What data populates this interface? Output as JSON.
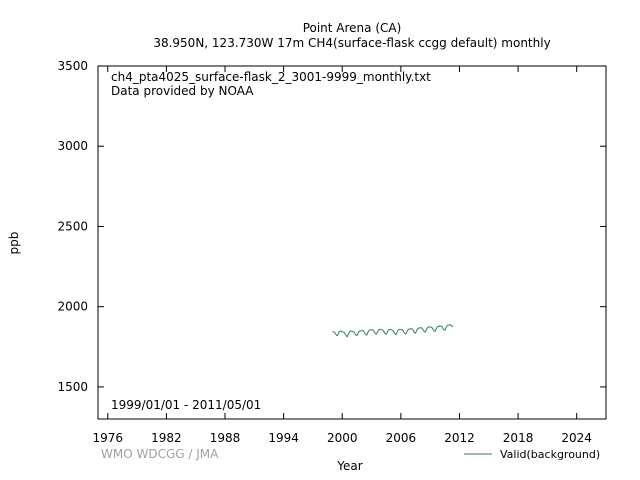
{
  "chart_data": {
    "type": "line",
    "title": "Point Arena (CA)",
    "subtitle": "38.950N, 123.730W 17m    CH4(surface-flask ccgg default) monthly",
    "file_label": "ch4_pta4025_surface-flask_2_3001-9999_monthly.txt",
    "provider_label": "Data provided by NOAA",
    "period_label": "1999/01/01 - 2011/05/01",
    "credit": "WMO WDCGG / JMA",
    "xlabel": "Year",
    "ylabel": "ppb",
    "xlim": [
      1975,
      2027
    ],
    "ylim": [
      1300,
      3500
    ],
    "x_ticks": [
      "1976",
      "1982",
      "1988",
      "1994",
      "2000",
      "2006",
      "2012",
      "2018",
      "2024"
    ],
    "y_ticks": [
      "1500",
      "2000",
      "2500",
      "3000",
      "3500"
    ],
    "grid": false,
    "legend_position": "bottom-right",
    "series": [
      {
        "name": "Valid(background)",
        "color": "#2e7d5b",
        "x_start": "1999-01",
        "values": [
          1845,
          1844,
          1843,
          1838,
          1829,
          1822,
          1820,
          1830,
          1841,
          1846,
          1848,
          1846,
          1843,
          1843,
          1841,
          1835,
          1826,
          1818,
          1813,
          1822,
          1834,
          1844,
          1847,
          1848,
          1847,
          1846,
          1844,
          1838,
          1829,
          1822,
          1820,
          1829,
          1841,
          1848,
          1850,
          1849,
          1851,
          1850,
          1848,
          1841,
          1832,
          1825,
          1823,
          1832,
          1845,
          1852,
          1856,
          1855,
          1856,
          1855,
          1853,
          1846,
          1837,
          1831,
          1829,
          1838,
          1849,
          1856,
          1859,
          1858,
          1856,
          1856,
          1854,
          1847,
          1838,
          1831,
          1829,
          1837,
          1848,
          1855,
          1858,
          1858,
          1856,
          1855,
          1853,
          1846,
          1837,
          1830,
          1827,
          1836,
          1848,
          1855,
          1858,
          1858,
          1857,
          1856,
          1855,
          1848,
          1839,
          1832,
          1829,
          1838,
          1850,
          1857,
          1860,
          1860,
          1863,
          1862,
          1861,
          1854,
          1845,
          1838,
          1836,
          1845,
          1857,
          1864,
          1867,
          1867,
          1869,
          1868,
          1866,
          1859,
          1850,
          1844,
          1842,
          1851,
          1863,
          1870,
          1873,
          1873,
          1874,
          1873,
          1871,
          1864,
          1855,
          1849,
          1846,
          1856,
          1868,
          1875,
          1878,
          1878,
          1880,
          1879,
          1878,
          1871,
          1862,
          1856,
          1854,
          1863,
          1875,
          1882,
          1885,
          1885,
          1887,
          1886,
          1884,
          1878,
          1873
        ]
      }
    ]
  }
}
